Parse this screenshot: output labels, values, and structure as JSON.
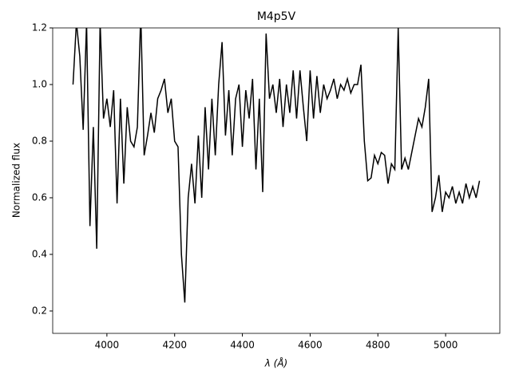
{
  "chart_data": {
    "type": "line",
    "title": "M4p5V",
    "xlabel": "λ (Å)",
    "ylabel": "Normalized flux",
    "x": [
      3900,
      3910,
      3920,
      3930,
      3940,
      3950,
      3960,
      3970,
      3980,
      3990,
      4000,
      4010,
      4020,
      4030,
      4040,
      4050,
      4060,
      4070,
      4080,
      4090,
      4100,
      4110,
      4120,
      4130,
      4140,
      4150,
      4160,
      4170,
      4180,
      4190,
      4200,
      4210,
      4220,
      4230,
      4240,
      4250,
      4260,
      4270,
      4280,
      4290,
      4300,
      4310,
      4320,
      4330,
      4340,
      4350,
      4360,
      4370,
      4380,
      4390,
      4400,
      4410,
      4420,
      4430,
      4440,
      4450,
      4460,
      4470,
      4480,
      4490,
      4500,
      4510,
      4520,
      4530,
      4540,
      4550,
      4560,
      4570,
      4580,
      4590,
      4600,
      4610,
      4620,
      4630,
      4640,
      4650,
      4660,
      4670,
      4680,
      4690,
      4700,
      4710,
      4720,
      4730,
      4740,
      4750,
      4760,
      4770,
      4780,
      4790,
      4800,
      4810,
      4820,
      4830,
      4840,
      4850,
      4860,
      4870,
      4880,
      4890,
      4900,
      4910,
      4920,
      4930,
      4940,
      4950,
      4960,
      4970,
      4980,
      4990,
      5000,
      5010,
      5020,
      5030,
      5040,
      5050,
      5060,
      5070,
      5080,
      5090,
      5100
    ],
    "series": [
      {
        "name": "M4p5V",
        "color": "#000000",
        "values": [
          1.0,
          1.22,
          1.1,
          0.84,
          1.22,
          0.5,
          0.85,
          0.42,
          1.22,
          0.88,
          0.95,
          0.85,
          0.98,
          0.58,
          0.95,
          0.65,
          0.92,
          0.8,
          0.78,
          0.85,
          1.25,
          0.75,
          0.82,
          0.9,
          0.83,
          0.95,
          0.98,
          1.02,
          0.9,
          0.95,
          0.8,
          0.78,
          0.4,
          0.23,
          0.6,
          0.72,
          0.58,
          0.82,
          0.6,
          0.92,
          0.7,
          0.95,
          0.75,
          1.0,
          1.15,
          0.82,
          0.98,
          0.75,
          0.95,
          1.0,
          0.78,
          0.98,
          0.88,
          1.02,
          0.7,
          0.95,
          0.62,
          1.18,
          0.95,
          1.0,
          0.9,
          1.02,
          0.85,
          1.0,
          0.9,
          1.05,
          0.88,
          1.05,
          0.92,
          0.8,
          1.05,
          0.88,
          1.03,
          0.9,
          1.0,
          0.95,
          0.98,
          1.02,
          0.95,
          1.0,
          0.98,
          1.02,
          0.97,
          1.0,
          1.0,
          1.07,
          0.8,
          0.66,
          0.67,
          0.75,
          0.72,
          0.76,
          0.75,
          0.65,
          0.72,
          0.7,
          1.2,
          0.7,
          0.74,
          0.7,
          0.76,
          0.82,
          0.88,
          0.85,
          0.92,
          1.02,
          0.55,
          0.6,
          0.68,
          0.55,
          0.62,
          0.6,
          0.64,
          0.58,
          0.62,
          0.58,
          0.65,
          0.6,
          0.64,
          0.6,
          0.66
        ]
      }
    ],
    "xlim": [
      3840,
      5160
    ],
    "ylim": [
      0.121,
      1.2
    ],
    "xticks": [
      4000,
      4200,
      4400,
      4600,
      4800,
      5000
    ],
    "yticks": [
      0.2,
      0.4,
      0.6,
      0.8,
      {
        "value": 1,
        "label": "1.0"
      },
      1.2
    ]
  }
}
